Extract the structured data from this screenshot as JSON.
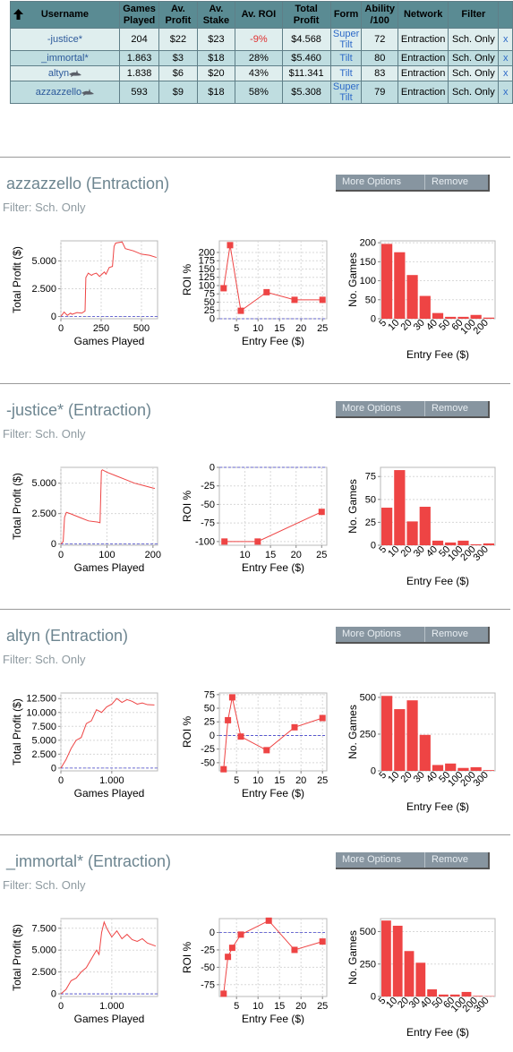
{
  "table": {
    "headers": [
      "Username",
      "Games Played",
      "Av. Profit",
      "Av. Stake",
      "Av. ROI",
      "Total Profit",
      "Form",
      "Ability /100",
      "Network",
      "Filter"
    ],
    "header_lines": [
      [
        "Username"
      ],
      [
        "Games",
        "Played"
      ],
      [
        "Av.",
        "Profit"
      ],
      [
        "Av.",
        "Stake"
      ],
      [
        "Av. ROI"
      ],
      [
        "Total",
        "Profit"
      ],
      [
        "Form"
      ],
      [
        "Ability",
        "/100"
      ],
      [
        "Network"
      ],
      [
        "Filter"
      ]
    ],
    "rows": [
      {
        "username": "-justice*",
        "games": "204",
        "av_profit": "$22",
        "av_stake": "$23",
        "av_roi": "-9%",
        "total_profit": "$4.568",
        "form_lines": [
          "Super",
          "Tilt"
        ],
        "ability": "72",
        "network": "Entraction",
        "filter": "Sch. Only",
        "remove": "x",
        "shark": false,
        "roi_negative": true
      },
      {
        "username": "_immortal*",
        "games": "1.863",
        "av_profit": "$3",
        "av_stake": "$18",
        "av_roi": "28%",
        "total_profit": "$5.460",
        "form_lines": [
          "Tilt"
        ],
        "ability": "80",
        "network": "Entraction",
        "filter": "Sch. Only",
        "remove": "x",
        "shark": false,
        "roi_negative": false
      },
      {
        "username": "altyn",
        "games": "1.838",
        "av_profit": "$6",
        "av_stake": "$20",
        "av_roi": "43%",
        "total_profit": "$11.341",
        "form_lines": [
          "Tilt"
        ],
        "ability": "83",
        "network": "Entraction",
        "filter": "Sch. Only",
        "remove": "x",
        "shark": true,
        "roi_negative": false
      },
      {
        "username": "azzazzello",
        "games": "593",
        "av_profit": "$9",
        "av_stake": "$18",
        "av_roi": "58%",
        "total_profit": "$5.308",
        "form_lines": [
          "Super",
          "Tilt"
        ],
        "ability": "79",
        "network": "Entraction",
        "filter": "Sch. Only",
        "remove": "x",
        "shark": true,
        "roi_negative": false
      }
    ]
  },
  "buttons": {
    "more_options": "More Options",
    "remove": "Remove"
  },
  "colors": {
    "header_bg": "#5a8b93",
    "row_light": "#dfeeee",
    "row_dark": "#bfdde0",
    "series": "#ee4444",
    "zero_line": "#4444cc",
    "title": "#6d8590"
  },
  "players": [
    {
      "title": "azzazzello (Entraction)",
      "filter": "Filter: Sch. Only"
    },
    {
      "title": "-justice* (Entraction)",
      "filter": "Filter: Sch. Only"
    },
    {
      "title": "altyn (Entraction)",
      "filter": "Filter: Sch. Only"
    },
    {
      "title": "_immortal* (Entraction)",
      "filter": "Filter: Sch. Only"
    }
  ],
  "chart_data": [
    {
      "player": "azzazzello",
      "type": "line",
      "xlabel": "Games Played",
      "ylabel": "Total Profit ($)",
      "xlim": [
        0,
        600
      ],
      "ylim": [
        -200,
        6800
      ],
      "xticks": [
        {
          "v": 0,
          "l": "0"
        },
        {
          "v": 250,
          "l": "250"
        },
        {
          "v": 500,
          "l": "500"
        }
      ],
      "yticks": [
        {
          "v": 0,
          "l": "0"
        },
        {
          "v": 2500,
          "l": "2.500"
        },
        {
          "v": 5000,
          "l": "5.000"
        }
      ],
      "x": [
        0,
        20,
        40,
        60,
        70,
        100,
        130,
        150,
        155,
        170,
        190,
        200,
        220,
        240,
        270,
        280,
        300,
        320,
        330,
        340,
        380,
        400,
        450,
        500,
        550,
        593
      ],
      "y": [
        0,
        400,
        100,
        300,
        200,
        350,
        300,
        500,
        3500,
        3900,
        3700,
        3800,
        3900,
        3600,
        4000,
        3800,
        4400,
        4500,
        6300,
        6600,
        6700,
        6100,
        5900,
        5600,
        5500,
        5308
      ]
    },
    {
      "player": "azzazzello",
      "type": "line",
      "xlabel": "Entry Fee ($)",
      "ylabel": "ROI %",
      "xlim": [
        1,
        26
      ],
      "ylim": [
        0,
        235
      ],
      "xticks": [
        {
          "v": 5,
          "l": "5"
        },
        {
          "v": 10,
          "l": "10"
        },
        {
          "v": 15,
          "l": "15"
        },
        {
          "v": 20,
          "l": "20"
        },
        {
          "v": 25,
          "l": "25"
        }
      ],
      "yticks": [
        {
          "v": 0,
          "l": "0"
        },
        {
          "v": 25,
          "l": "25"
        },
        {
          "v": 50,
          "l": "50"
        },
        {
          "v": 75,
          "l": "75"
        },
        {
          "v": 100,
          "l": "100"
        },
        {
          "v": 125,
          "l": "125"
        },
        {
          "v": 150,
          "l": "150"
        },
        {
          "v": 175,
          "l": "175"
        },
        {
          "v": 200,
          "l": "200"
        }
      ],
      "x": [
        2,
        3.5,
        6,
        12,
        18.5,
        25
      ],
      "y": [
        92,
        222,
        24,
        80,
        57,
        57
      ]
    },
    {
      "player": "azzazzello",
      "type": "bar",
      "xlabel": "Entry Fee ($)",
      "ylabel": "No. Games",
      "ylim": [
        0,
        205
      ],
      "yticks": [
        {
          "v": 0,
          "l": "0"
        },
        {
          "v": 50,
          "l": "50"
        },
        {
          "v": 100,
          "l": "100"
        },
        {
          "v": 150,
          "l": "150"
        },
        {
          "v": 200,
          "l": "200"
        }
      ],
      "categories": [
        "5",
        "10",
        "20",
        "30",
        "40",
        "50",
        "60",
        "100",
        "200"
      ],
      "values": [
        197,
        175,
        115,
        60,
        15,
        5,
        5,
        10,
        3
      ]
    },
    {
      "player": "-justice*",
      "type": "line",
      "xlabel": "Games Played",
      "ylabel": "Total Profit ($)",
      "xlim": [
        0,
        210
      ],
      "ylim": [
        -100,
        6300
      ],
      "xticks": [
        {
          "v": 0,
          "l": "0"
        },
        {
          "v": 100,
          "l": "100"
        },
        {
          "v": 200,
          "l": "200"
        }
      ],
      "yticks": [
        {
          "v": 0,
          "l": "0"
        },
        {
          "v": 2500,
          "l": "2.500"
        },
        {
          "v": 5000,
          "l": "5.000"
        }
      ],
      "x": [
        0,
        5,
        8,
        10,
        12,
        20,
        40,
        60,
        80,
        85,
        88,
        90,
        100,
        120,
        140,
        160,
        180,
        200,
        204
      ],
      "y": [
        0,
        200,
        2200,
        2400,
        2600,
        2500,
        2200,
        1900,
        1800,
        1750,
        6000,
        6100,
        5900,
        5600,
        5300,
        5000,
        4800,
        4600,
        4568
      ]
    },
    {
      "player": "-justice*",
      "type": "line",
      "xlabel": "Entry Fee ($)",
      "ylabel": "ROI %",
      "xlim": [
        5,
        26
      ],
      "ylim": [
        -105,
        0
      ],
      "xticks": [
        {
          "v": 10,
          "l": "10"
        },
        {
          "v": 15,
          "l": "15"
        },
        {
          "v": 20,
          "l": "20"
        },
        {
          "v": 25,
          "l": "25"
        }
      ],
      "yticks": [
        {
          "v": 0,
          "l": "0"
        },
        {
          "v": -25,
          "l": "-25"
        },
        {
          "v": -50,
          "l": "-50"
        },
        {
          "v": -75,
          "l": "-75"
        },
        {
          "v": -100,
          "l": "-100"
        }
      ],
      "x": [
        6,
        12.5,
        25
      ],
      "y": [
        -100,
        -100,
        -60
      ]
    },
    {
      "player": "-justice*",
      "type": "bar",
      "xlabel": "Entry Fee ($)",
      "ylabel": "No. Games",
      "ylim": [
        0,
        85
      ],
      "yticks": [
        {
          "v": 0,
          "l": "0"
        },
        {
          "v": 25,
          "l": "25"
        },
        {
          "v": 50,
          "l": "50"
        },
        {
          "v": 75,
          "l": "75"
        }
      ],
      "categories": [
        "5",
        "10",
        "20",
        "30",
        "40",
        "50",
        "100",
        "200",
        "300"
      ],
      "values": [
        41,
        82,
        26,
        42,
        5,
        3,
        5,
        1,
        2
      ]
    },
    {
      "player": "altyn",
      "type": "line",
      "xlabel": "Games Played",
      "ylabel": "Total Profit ($)",
      "xlim": [
        0,
        1900
      ],
      "ylim": [
        -500,
        13500
      ],
      "xticks": [
        {
          "v": 0,
          "l": "0"
        },
        {
          "v": 1000,
          "l": "1.000"
        }
      ],
      "yticks": [
        {
          "v": 0,
          "l": "0"
        },
        {
          "v": 2500,
          "l": "2.500"
        },
        {
          "v": 5000,
          "l": "5.000"
        },
        {
          "v": 7500,
          "l": "7.500"
        },
        {
          "v": 10000,
          "l": "10.000"
        },
        {
          "v": 12500,
          "l": "12.500"
        }
      ],
      "x": [
        0,
        100,
        200,
        300,
        400,
        500,
        600,
        700,
        800,
        900,
        1000,
        1100,
        1200,
        1300,
        1400,
        1500,
        1600,
        1700,
        1838
      ],
      "y": [
        0,
        1500,
        3500,
        5000,
        5500,
        8000,
        8500,
        10500,
        10000,
        11000,
        11500,
        12500,
        11800,
        12300,
        12000,
        11500,
        11700,
        11400,
        11341
      ]
    },
    {
      "player": "altyn",
      "type": "line",
      "xlabel": "Entry Fee ($)",
      "ylabel": "ROI %",
      "xlim": [
        1,
        26
      ],
      "ylim": [
        -65,
        78
      ],
      "xticks": [
        {
          "v": 5,
          "l": "5"
        },
        {
          "v": 10,
          "l": "10"
        },
        {
          "v": 15,
          "l": "15"
        },
        {
          "v": 20,
          "l": "20"
        },
        {
          "v": 25,
          "l": "25"
        }
      ],
      "yticks": [
        {
          "v": -50,
          "l": "-50"
        },
        {
          "v": -25,
          "l": "-25"
        },
        {
          "v": 0,
          "l": "0"
        },
        {
          "v": 25,
          "l": "25"
        },
        {
          "v": 50,
          "l": "50"
        },
        {
          "v": 75,
          "l": "75"
        }
      ],
      "x": [
        2,
        3,
        4,
        6,
        12,
        18.5,
        25
      ],
      "y": [
        -62,
        28,
        70,
        -2,
        -27,
        15,
        32
      ]
    },
    {
      "player": "altyn",
      "type": "bar",
      "xlabel": "Entry Fee ($)",
      "ylabel": "No. Games",
      "ylim": [
        0,
        530
      ],
      "yticks": [
        {
          "v": 0,
          "l": "0"
        },
        {
          "v": 250,
          "l": "250"
        },
        {
          "v": 500,
          "l": "500"
        }
      ],
      "categories": [
        "5",
        "10",
        "20",
        "30",
        "40",
        "50",
        "100",
        "200",
        "300"
      ],
      "values": [
        510,
        420,
        480,
        245,
        40,
        50,
        20,
        25,
        5
      ]
    },
    {
      "player": "_immortal*",
      "type": "line",
      "xlabel": "Games Played",
      "ylabel": "Total Profit ($)",
      "xlim": [
        0,
        1900
      ],
      "ylim": [
        -300,
        8600
      ],
      "xticks": [
        {
          "v": 0,
          "l": "0"
        },
        {
          "v": 1000,
          "l": "1.000"
        }
      ],
      "yticks": [
        {
          "v": 0,
          "l": "0"
        },
        {
          "v": 2500,
          "l": "2.500"
        },
        {
          "v": 5000,
          "l": "5.000"
        },
        {
          "v": 7500,
          "l": "7.500"
        }
      ],
      "x": [
        0,
        100,
        200,
        300,
        400,
        500,
        600,
        700,
        750,
        800,
        850,
        900,
        1000,
        1100,
        1200,
        1300,
        1400,
        1500,
        1600,
        1700,
        1863
      ],
      "y": [
        0,
        500,
        1500,
        1800,
        2500,
        3000,
        4000,
        5000,
        4500,
        7000,
        8200,
        7500,
        6500,
        7200,
        6300,
        6800,
        6200,
        6000,
        6300,
        5800,
        5460
      ]
    },
    {
      "player": "_immortal*",
      "type": "line",
      "xlabel": "Entry Fee ($)",
      "ylabel": "ROI %",
      "xlim": [
        1,
        26
      ],
      "ylim": [
        -92,
        20
      ],
      "xticks": [
        {
          "v": 5,
          "l": "5"
        },
        {
          "v": 10,
          "l": "10"
        },
        {
          "v": 15,
          "l": "15"
        },
        {
          "v": 20,
          "l": "20"
        },
        {
          "v": 25,
          "l": "25"
        }
      ],
      "yticks": [
        {
          "v": -75,
          "l": "-75"
        },
        {
          "v": -50,
          "l": "-50"
        },
        {
          "v": -25,
          "l": "-25"
        },
        {
          "v": 0,
          "l": "0"
        }
      ],
      "x": [
        2,
        3,
        4,
        6,
        12.5,
        18.5,
        25
      ],
      "y": [
        -88,
        -35,
        -22,
        -3,
        17,
        -25,
        -13
      ]
    },
    {
      "player": "_immortal*",
      "type": "bar",
      "xlabel": "Entry Fee ($)",
      "ylabel": "No. Games",
      "ylim": [
        0,
        600
      ],
      "yticks": [
        {
          "v": 0,
          "l": "0"
        },
        {
          "v": 250,
          "l": "250"
        },
        {
          "v": 500,
          "l": "500"
        }
      ],
      "categories": [
        "5",
        "10",
        "20",
        "30",
        "40",
        "50",
        "60",
        "100",
        "200",
        "300"
      ],
      "values": [
        585,
        545,
        350,
        260,
        55,
        15,
        15,
        35,
        5,
        3
      ]
    }
  ]
}
